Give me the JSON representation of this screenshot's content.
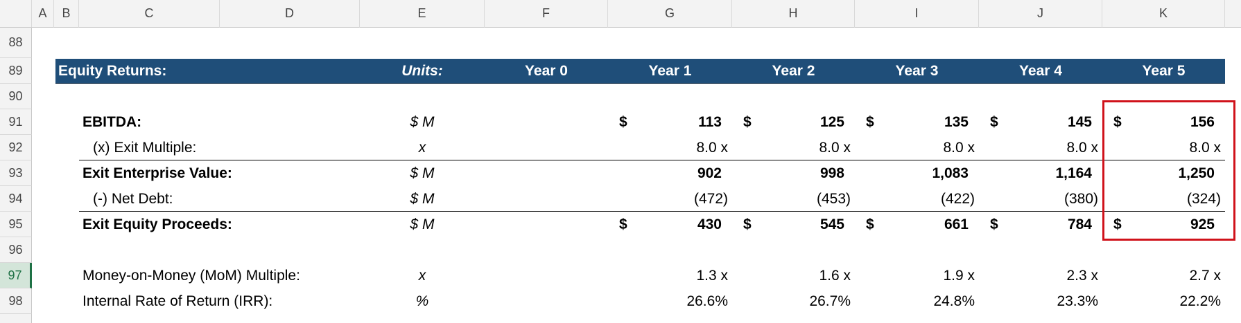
{
  "column_headers": [
    "A",
    "B",
    "C",
    "D",
    "E",
    "F",
    "G",
    "H",
    "I",
    "J",
    "K"
  ],
  "row_numbers": [
    "88",
    "89",
    "90",
    "91",
    "92",
    "93",
    "94",
    "95",
    "96",
    "97",
    "98"
  ],
  "header": {
    "label": "Equity Returns:",
    "units": "Units:",
    "periods": [
      "Year 0",
      "Year 1",
      "Year 2",
      "Year 3",
      "Year 4",
      "Year 5"
    ]
  },
  "rows": [
    {
      "label": "EBITDA:",
      "units": "$ M",
      "currency": "$",
      "values": [
        "113",
        "125",
        "135",
        "145",
        "156"
      ]
    },
    {
      "label": "(x) Exit Multiple:",
      "units": "x",
      "values": [
        "8.0 x",
        "8.0 x",
        "8.0 x",
        "8.0 x",
        "8.0 x"
      ]
    },
    {
      "label": "Exit Enterprise Value:",
      "units": "$ M",
      "values": [
        "902",
        "998",
        "1,083",
        "1,164",
        "1,250"
      ]
    },
    {
      "label": "(-) Net Debt:",
      "units": "$ M",
      "values": [
        "(472)",
        "(453)",
        "(422)",
        "(380)",
        "(324)"
      ]
    },
    {
      "label": "Exit Equity Proceeds:",
      "units": "$ M",
      "currency": "$",
      "values": [
        "430",
        "545",
        "661",
        "784",
        "925"
      ]
    },
    {
      "label": "Money-on-Money (MoM) Multiple:",
      "units": "x",
      "values": [
        "1.3 x",
        "1.6 x",
        "1.9 x",
        "2.3 x",
        "2.7 x"
      ]
    },
    {
      "label": "Internal Rate of Return (IRR):",
      "units": "%",
      "values": [
        "26.6%",
        "26.7%",
        "24.8%",
        "23.3%",
        "22.2%"
      ]
    }
  ]
}
